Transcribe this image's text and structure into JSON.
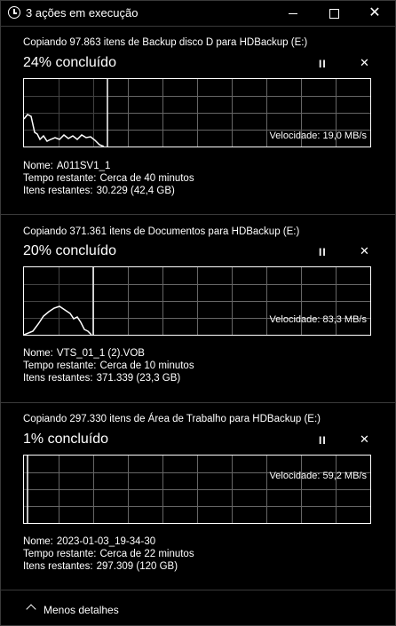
{
  "window": {
    "title": "3 ações em execução",
    "close_glyph": "✕"
  },
  "operations": [
    {
      "header": "Copiando 97.863 itens de Backup disco D para HDBackup (E:)",
      "percent_text": "24% concluído",
      "progress": 0.24,
      "speed": "Velocidade: 19,0 MB/s",
      "name_label": "Nome:",
      "name_value": "A011SV1_1",
      "time_label": "Tempo restante:",
      "time_value": "Cerca de 40 minutos",
      "items_label": "Itens restantes:",
      "items_value": "30.229 (42,4 GB)"
    },
    {
      "header": "Copiando 371.361 itens de Documentos para HDBackup (E:)",
      "percent_text": "20% concluído",
      "progress": 0.2,
      "speed": "Velocidade: 83,3 MB/s",
      "name_label": "Nome:",
      "name_value": "VTS_01_1 (2).VOB",
      "time_label": "Tempo restante:",
      "time_value": "Cerca de 10 minutos",
      "items_label": "Itens restantes:",
      "items_value": "371.339 (23,3 GB)"
    },
    {
      "header": "Copiando 297.330 itens de Área de Trabalho para HDBackup (E:)",
      "percent_text": "1% concluído",
      "progress": 0.01,
      "speed": "Velocidade: 59,2 MB/s",
      "name_label": "Nome:",
      "name_value": "2023-01-03_19-34-30",
      "time_label": "Tempo restante:",
      "time_value": "Cerca de 22 minutos",
      "items_label": "Itens restantes:",
      "items_value": "297.309 (120 GB)"
    }
  ],
  "controls": {
    "pause_glyph": "II",
    "cancel_glyph": "✕"
  },
  "footer": {
    "label": "Menos detalhes"
  }
}
